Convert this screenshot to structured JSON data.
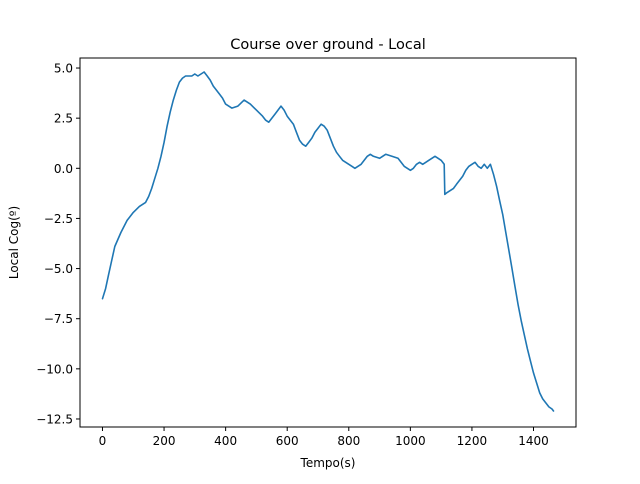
{
  "chart_data": {
    "type": "line",
    "title": "Course over ground - Local",
    "xlabel": "Tempo(s)",
    "ylabel": "Local Cog(º)",
    "xlim": [
      -73,
      1538
    ],
    "ylim": [
      -12.9,
      5.5
    ],
    "xticks": [
      0,
      200,
      400,
      600,
      800,
      1000,
      1200,
      1400
    ],
    "yticks": [
      5.0,
      2.5,
      0.0,
      -2.5,
      -5.0,
      -7.5,
      -10.0,
      -12.5
    ],
    "ytick_labels": [
      "5.0",
      "2.5",
      "0.0",
      "−2.5",
      "−5.0",
      "−7.5",
      "−10.0",
      "−12.5"
    ],
    "grid": false,
    "line_color": "#1f77b4",
    "series": [
      {
        "x": [
          0,
          10,
          20,
          30,
          40,
          60,
          80,
          100,
          120,
          140,
          150,
          160,
          170,
          180,
          190,
          200,
          210,
          220,
          230,
          240,
          250,
          260,
          270,
          280,
          290,
          300,
          310,
          320,
          330,
          340,
          350,
          360,
          370,
          380,
          390,
          400,
          420,
          440,
          460,
          480,
          500,
          520,
          530,
          540,
          550,
          560,
          570,
          580,
          590,
          600,
          610,
          620,
          630,
          640,
          650,
          660,
          670,
          680,
          690,
          700,
          710,
          720,
          730,
          740,
          750,
          760,
          770,
          780,
          790,
          800,
          810,
          820,
          830,
          840,
          850,
          860,
          870,
          880,
          900,
          920,
          940,
          960,
          980,
          990,
          1000,
          1010,
          1020,
          1030,
          1040,
          1050,
          1060,
          1070,
          1080,
          1090,
          1100,
          1110,
          1112,
          1120,
          1130,
          1140,
          1150,
          1160,
          1170,
          1180,
          1190,
          1200,
          1210,
          1220,
          1230,
          1240,
          1250,
          1260,
          1270,
          1280,
          1290,
          1300,
          1310,
          1320,
          1330,
          1340,
          1350,
          1360,
          1370,
          1380,
          1390,
          1400,
          1410,
          1420,
          1430,
          1440,
          1450,
          1460,
          1465
        ],
        "y": [
          -6.5,
          -6.0,
          -5.3,
          -4.6,
          -3.9,
          -3.2,
          -2.6,
          -2.2,
          -1.9,
          -1.7,
          -1.4,
          -1.0,
          -0.5,
          0.0,
          0.6,
          1.3,
          2.1,
          2.8,
          3.4,
          3.9,
          4.3,
          4.5,
          4.6,
          4.6,
          4.6,
          4.7,
          4.6,
          4.7,
          4.8,
          4.6,
          4.4,
          4.1,
          3.9,
          3.7,
          3.5,
          3.2,
          3.0,
          3.1,
          3.4,
          3.2,
          2.9,
          2.6,
          2.4,
          2.3,
          2.5,
          2.7,
          2.9,
          3.1,
          2.9,
          2.6,
          2.4,
          2.2,
          1.8,
          1.4,
          1.2,
          1.1,
          1.3,
          1.5,
          1.8,
          2.0,
          2.2,
          2.1,
          1.9,
          1.5,
          1.1,
          0.8,
          0.6,
          0.4,
          0.3,
          0.2,
          0.1,
          0.0,
          0.1,
          0.2,
          0.4,
          0.6,
          0.7,
          0.6,
          0.5,
          0.7,
          0.6,
          0.5,
          0.1,
          0.0,
          -0.1,
          0.0,
          0.2,
          0.3,
          0.2,
          0.3,
          0.4,
          0.5,
          0.6,
          0.5,
          0.4,
          0.2,
          -1.3,
          -1.2,
          -1.1,
          -1.0,
          -0.8,
          -0.6,
          -0.4,
          -0.1,
          0.1,
          0.2,
          0.3,
          0.1,
          0.0,
          0.2,
          0.0,
          0.2,
          -0.3,
          -0.9,
          -1.6,
          -2.3,
          -3.2,
          -4.1,
          -5.0,
          -5.9,
          -6.8,
          -7.6,
          -8.3,
          -9.0,
          -9.6,
          -10.2,
          -10.7,
          -11.2,
          -11.5,
          -11.7,
          -11.9,
          -12.0,
          -12.1
        ]
      }
    ]
  }
}
